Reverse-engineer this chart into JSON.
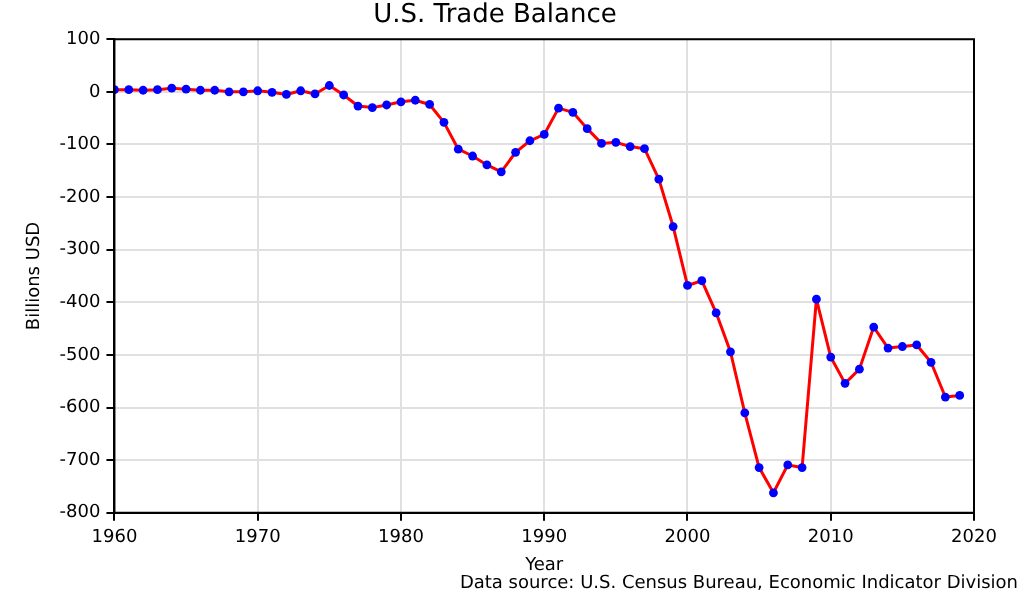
{
  "chart_data": {
    "type": "line",
    "title": "U.S. Trade Balance",
    "xlabel": "Year",
    "ylabel": "Billions USD",
    "annotations": [
      "Data source: U.S. Census Bureau, Economic Indicator Division"
    ],
    "x": [
      1960,
      1961,
      1962,
      1963,
      1964,
      1965,
      1966,
      1967,
      1968,
      1969,
      1970,
      1971,
      1972,
      1973,
      1974,
      1975,
      1976,
      1977,
      1978,
      1979,
      1980,
      1981,
      1982,
      1983,
      1984,
      1985,
      1986,
      1987,
      1988,
      1989,
      1990,
      1991,
      1992,
      1993,
      1994,
      1995,
      1996,
      1997,
      1998,
      1999,
      2000,
      2001,
      2002,
      2003,
      2004,
      2005,
      2006,
      2007,
      2008,
      2009,
      2010,
      2011,
      2012,
      2013,
      2014,
      2015,
      2016,
      2017,
      2018,
      2019
    ],
    "series": [
      {
        "color": "#ff0000",
        "colors": [
          "#0000ff",
          "#0000ff",
          "#0000ff",
          "#0000ff",
          "#0000ff",
          "#0000ff",
          "#0000ff",
          "#0000ff",
          "#0000ff",
          "#0000ff",
          "#0000ff",
          "#0000ff",
          "#0000ff",
          "#0000ff",
          "#0000ff",
          "#0000ff",
          "#0000ff",
          "#0000ff",
          "#0000ff",
          "#0000ff",
          "#0000ff",
          "#0000ff",
          "#0000ff",
          "#0000ff",
          "#0000ff",
          "#0000ff",
          "#0000ff",
          "#0000ff",
          "#0000ff",
          "#0000ff",
          "#0000ff",
          "#0000ff",
          "#0000ff",
          "#0000ff",
          "#0000ff",
          "#0000ff",
          "#0000ff",
          "#0000ff",
          "#0000ff",
          "#0000ff",
          "#0000ff",
          "#0000ff",
          "#0000ff",
          "#0000ff",
          "#0000ff",
          "#0000ff",
          "#0000ff",
          "#0000ff",
          "#0000ff",
          "#0000ff",
          "#0000ff",
          "#0000ff",
          "#0000ff",
          "#0000ff",
          "#0000ff",
          "#0000ff",
          "#0000ff",
          "#0000ff",
          "#0000ff",
          "#0000ff"
        ],
        "values": [
          4,
          4,
          3,
          4,
          7,
          5,
          3,
          3,
          0,
          0,
          2,
          -1,
          -5,
          2,
          -4,
          12,
          -6,
          -27,
          -30,
          -25,
          -19,
          -16,
          -24,
          -58,
          -109,
          -122,
          -139,
          -152,
          -115,
          -93,
          -81,
          -31,
          -39,
          -70,
          -98,
          -96,
          -104,
          -108,
          -166,
          -256,
          -368,
          -359,
          -420,
          -494,
          -610,
          -714,
          -762,
          -709,
          -714,
          -394,
          -504,
          -554,
          -527,
          -447,
          -487,
          -484,
          -481,
          -514,
          -580,
          -577
        ]
      }
    ],
    "xlim": [
      1960,
      2020
    ],
    "xticks": [
      1960,
      1970,
      1980,
      1990,
      2000,
      2010,
      2020
    ],
    "ylim": [
      -800,
      100
    ],
    "yticks": [
      -800,
      -700,
      -600,
      -500,
      -400,
      -300,
      -200,
      -100,
      0,
      100
    ],
    "grid": true,
    "legend": false,
    "marker": "circle",
    "line_style": "solid"
  }
}
